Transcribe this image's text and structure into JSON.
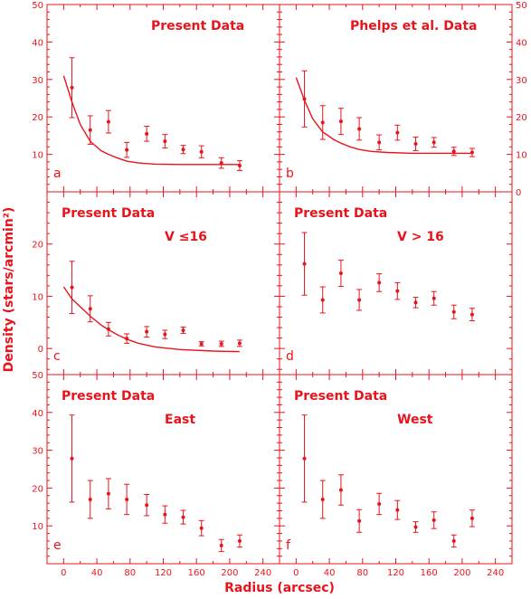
{
  "colors": {
    "ink": "#e8141c"
  },
  "figure": {
    "xlabel": "Radius (arcsec)",
    "ylabel": "Density (stars/arcmin²)"
  },
  "chart_data": [
    {
      "id": "a",
      "type": "scatter",
      "title": "Present Data",
      "subtitle": "",
      "letter": "a",
      "xlim": [
        -20,
        260
      ],
      "ylim": [
        0,
        50
      ],
      "xticks": [],
      "yticks": [
        10,
        20,
        30,
        40,
        50
      ],
      "ytick_side": "left",
      "series": [
        {
          "points": [
            {
              "x": 10,
              "y": 27.8,
              "err": 8
            },
            {
              "x": 32,
              "y": 16.5,
              "err": 3.8
            },
            {
              "x": 54,
              "y": 18.7,
              "err": 3
            },
            {
              "x": 76,
              "y": 11.2,
              "err": 2
            },
            {
              "x": 100,
              "y": 15.5,
              "err": 2
            },
            {
              "x": 122,
              "y": 13.5,
              "err": 1.8
            },
            {
              "x": 144,
              "y": 11.3,
              "err": 1.1
            },
            {
              "x": 166,
              "y": 10.7,
              "err": 1.6
            },
            {
              "x": 190,
              "y": 7.7,
              "err": 1.4
            },
            {
              "x": 212,
              "y": 7,
              "err": 1.3
            }
          ]
        }
      ],
      "curve": [
        [
          0,
          31
        ],
        [
          10,
          24
        ],
        [
          20,
          18
        ],
        [
          32,
          13.5
        ],
        [
          45,
          11
        ],
        [
          54,
          10
        ],
        [
          65,
          9
        ],
        [
          76,
          8.2
        ],
        [
          90,
          7.7
        ],
        [
          110,
          7.4
        ],
        [
          140,
          7.3
        ],
        [
          180,
          7.3
        ],
        [
          212,
          7.3
        ]
      ]
    },
    {
      "id": "b",
      "type": "scatter",
      "title": "Phelps et al. Data",
      "subtitle": "",
      "letter": "b",
      "xlim": [
        -20,
        260
      ],
      "ylim": [
        0,
        50
      ],
      "xticks": [],
      "yticks": [
        0,
        10,
        20,
        30,
        40,
        50
      ],
      "ytick_side": "right",
      "series": [
        {
          "points": [
            {
              "x": 10,
              "y": 24.8,
              "err": 7.5
            },
            {
              "x": 32,
              "y": 18.5,
              "err": 4.5
            },
            {
              "x": 54,
              "y": 18.8,
              "err": 3.5
            },
            {
              "x": 76,
              "y": 16.8,
              "err": 3
            },
            {
              "x": 100,
              "y": 13.2,
              "err": 2
            },
            {
              "x": 122,
              "y": 15.8,
              "err": 2
            },
            {
              "x": 144,
              "y": 12.8,
              "err": 1.8
            },
            {
              "x": 166,
              "y": 13.2,
              "err": 1.3
            },
            {
              "x": 190,
              "y": 10.8,
              "err": 1.1
            },
            {
              "x": 212,
              "y": 10.5,
              "err": 1.1
            }
          ]
        }
      ],
      "curve": [
        [
          0,
          30.5
        ],
        [
          10,
          24.5
        ],
        [
          20,
          19.5
        ],
        [
          32,
          16
        ],
        [
          45,
          14
        ],
        [
          54,
          13
        ],
        [
          65,
          12
        ],
        [
          76,
          11.3
        ],
        [
          90,
          10.8
        ],
        [
          110,
          10.5
        ],
        [
          140,
          10.3
        ],
        [
          180,
          10.3
        ],
        [
          212,
          10.3
        ]
      ]
    },
    {
      "id": "c",
      "type": "scatter",
      "title": "Present Data",
      "subtitle": "V ≤16",
      "letter": "c",
      "xlim": [
        -20,
        260
      ],
      "ylim": [
        -5,
        30
      ],
      "xticks": [],
      "yticks": [
        0,
        10,
        20
      ],
      "ytick_side": "left",
      "series": [
        {
          "points": [
            {
              "x": 10,
              "y": 11.7,
              "err": 5
            },
            {
              "x": 32,
              "y": 7.6,
              "err": 2.5
            },
            {
              "x": 54,
              "y": 3.7,
              "err": 1.3
            },
            {
              "x": 76,
              "y": 1.9,
              "err": 0.9
            },
            {
              "x": 100,
              "y": 3.2,
              "err": 1
            },
            {
              "x": 122,
              "y": 2.7,
              "err": 0.8
            },
            {
              "x": 144,
              "y": 3.5,
              "err": 0.6
            },
            {
              "x": 166,
              "y": 0.9,
              "err": 0.4
            },
            {
              "x": 190,
              "y": 0.9,
              "err": 0.5
            },
            {
              "x": 212,
              "y": 1,
              "err": 0.6
            }
          ]
        }
      ],
      "curve": [
        [
          0,
          11.8
        ],
        [
          10,
          9.5
        ],
        [
          20,
          8
        ],
        [
          32,
          6.2
        ],
        [
          45,
          4.5
        ],
        [
          54,
          3.6
        ],
        [
          65,
          2.6
        ],
        [
          76,
          1.8
        ],
        [
          90,
          1
        ],
        [
          110,
          0.3
        ],
        [
          140,
          -0.2
        ],
        [
          180,
          -0.5
        ],
        [
          212,
          -0.6
        ]
      ]
    },
    {
      "id": "d",
      "type": "scatter",
      "title": "Present Data",
      "subtitle": "V > 16",
      "letter": "d",
      "xlim": [
        -20,
        260
      ],
      "ylim": [
        -5,
        30
      ],
      "xticks": [],
      "yticks": [],
      "ytick_side": "right",
      "series": [
        {
          "points": [
            {
              "x": 10,
              "y": 16.2,
              "err": 6
            },
            {
              "x": 32,
              "y": 9.3,
              "err": 2.5
            },
            {
              "x": 54,
              "y": 14.4,
              "err": 2.5
            },
            {
              "x": 76,
              "y": 9.3,
              "err": 2
            },
            {
              "x": 100,
              "y": 12.6,
              "err": 1.7
            },
            {
              "x": 122,
              "y": 11,
              "err": 1.6
            },
            {
              "x": 144,
              "y": 8.8,
              "err": 1
            },
            {
              "x": 166,
              "y": 9.6,
              "err": 1.3
            },
            {
              "x": 190,
              "y": 7,
              "err": 1.3
            },
            {
              "x": 212,
              "y": 6.5,
              "err": 1.2
            }
          ]
        }
      ],
      "curve": []
    },
    {
      "id": "e",
      "type": "scatter",
      "title": "Present Data",
      "subtitle": "East",
      "letter": "e",
      "xlim": [
        -20,
        260
      ],
      "ylim": [
        0,
        50
      ],
      "xticks": [
        0,
        40,
        80,
        120,
        160,
        200,
        240
      ],
      "yticks": [
        10,
        20,
        30,
        40,
        50
      ],
      "ytick_side": "left",
      "series": [
        {
          "points": [
            {
              "x": 10,
              "y": 27.8,
              "err": 11.5
            },
            {
              "x": 32,
              "y": 17,
              "err": 5
            },
            {
              "x": 54,
              "y": 18.5,
              "err": 4
            },
            {
              "x": 76,
              "y": 17,
              "err": 4
            },
            {
              "x": 100,
              "y": 15.5,
              "err": 2.8
            },
            {
              "x": 122,
              "y": 13,
              "err": 2.3
            },
            {
              "x": 144,
              "y": 12.3,
              "err": 1.8
            },
            {
              "x": 166,
              "y": 9.4,
              "err": 2
            },
            {
              "x": 190,
              "y": 4.8,
              "err": 1.6
            },
            {
              "x": 212,
              "y": 6,
              "err": 1.6
            }
          ]
        }
      ],
      "curve": []
    },
    {
      "id": "f",
      "type": "scatter",
      "title": "Present Data",
      "subtitle": "West",
      "letter": "f",
      "xlim": [
        -20,
        260
      ],
      "ylim": [
        0,
        50
      ],
      "xticks": [
        0,
        40,
        80,
        120,
        160,
        200,
        240
      ],
      "yticks": [],
      "ytick_side": "right",
      "series": [
        {
          "points": [
            {
              "x": 10,
              "y": 27.8,
              "err": 11.5
            },
            {
              "x": 32,
              "y": 17,
              "err": 5
            },
            {
              "x": 54,
              "y": 19.5,
              "err": 4
            },
            {
              "x": 76,
              "y": 11.3,
              "err": 3
            },
            {
              "x": 100,
              "y": 15.8,
              "err": 2.8
            },
            {
              "x": 122,
              "y": 14.2,
              "err": 2.5
            },
            {
              "x": 144,
              "y": 9.7,
              "err": 1.4
            },
            {
              "x": 166,
              "y": 11.5,
              "err": 2.2
            },
            {
              "x": 190,
              "y": 6,
              "err": 1.6
            },
            {
              "x": 212,
              "y": 12,
              "err": 2.2
            }
          ]
        }
      ],
      "curve": []
    }
  ]
}
